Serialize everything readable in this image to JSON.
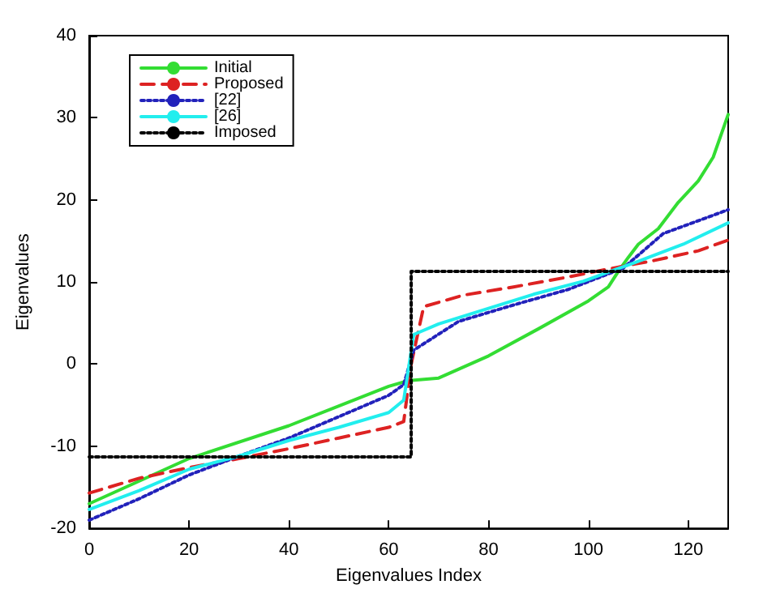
{
  "chart_data": {
    "type": "line",
    "xlabel": "Eigenvalues Index",
    "ylabel": "Eigenvalues",
    "xlim": [
      0,
      128
    ],
    "xticks": [
      0,
      20,
      40,
      60,
      80,
      100,
      120
    ],
    "ylim": [
      -20,
      40
    ],
    "yticks": [
      -20,
      -10,
      0,
      10,
      20,
      30,
      40
    ],
    "grid": false,
    "legend": "top left",
    "marker": "none",
    "series": [
      {
        "name": "Initial",
        "color": "#33dd33",
        "line_style": "solid",
        "x": [
          0,
          20,
          40,
          60,
          64,
          70,
          80,
          90,
          100,
          104,
          106,
          108,
          110,
          114,
          118,
          122,
          125,
          128
        ],
        "values": [
          -17,
          -11.5,
          -7.5,
          -2.7,
          -2,
          -1.7,
          1,
          4.3,
          7.7,
          9.4,
          11.3,
          13,
          14.6,
          16.5,
          19.7,
          22.3,
          25.2,
          30.4
        ]
      },
      {
        "name": "Proposed",
        "color": "#dd2222",
        "line_style": "dashed",
        "x": [
          0,
          10,
          20,
          30,
          40,
          50,
          60,
          63,
          64.5,
          67,
          75,
          85,
          95,
          105,
          113,
          122,
          128
        ],
        "values": [
          -15.7,
          -13.9,
          -12.6,
          -11.5,
          -10.3,
          -9,
          -7.7,
          -7,
          0,
          7,
          8.4,
          9.4,
          10.5,
          11.7,
          12.6,
          13.8,
          15.1
        ]
      },
      {
        "name": "[22]",
        "color": "#2222bb",
        "line_style": "dotted",
        "x": [
          0,
          10,
          20,
          30,
          40,
          50,
          60,
          63,
          65,
          74,
          85,
          96,
          107,
          115,
          128
        ],
        "values": [
          -19,
          -16.4,
          -13.5,
          -11.2,
          -9,
          -6.4,
          -3.8,
          -2.5,
          1.7,
          5.2,
          7.2,
          9.1,
          11.7,
          15.9,
          18.8
        ]
      },
      {
        "name": "[26]",
        "color": "#22eeee",
        "line_style": "solid",
        "x": [
          0,
          10,
          20,
          30,
          40,
          50,
          60,
          63,
          65,
          70,
          80,
          89,
          99,
          109,
          119,
          128
        ],
        "values": [
          -17.7,
          -15.4,
          -12.8,
          -11.2,
          -9.3,
          -7.7,
          -5.9,
          -4.4,
          3.6,
          4.9,
          6.8,
          8.5,
          10.1,
          12.3,
          14.6,
          17.2
        ]
      },
      {
        "name": "Imposed",
        "color": "#000000",
        "line_style": "dotted",
        "x": [
          0,
          64.5,
          64.5,
          128
        ],
        "values": [
          -11.3,
          -11.3,
          11.3,
          11.3
        ]
      }
    ]
  }
}
